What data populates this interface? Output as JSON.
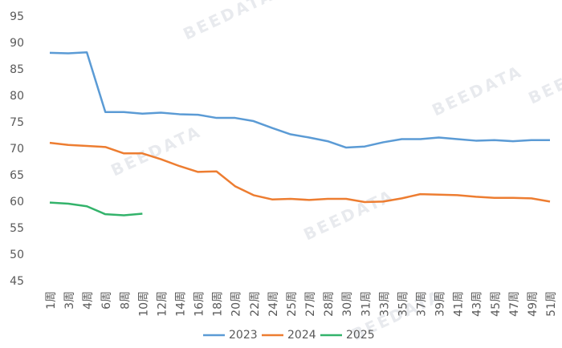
{
  "watermark": "BEEDATA",
  "chart_data": {
    "type": "line",
    "categories": [
      "1周",
      "3周",
      "4周",
      "6周",
      "8周",
      "10周",
      "12周",
      "14周",
      "16周",
      "18周",
      "20周",
      "22周",
      "24周",
      "25周",
      "27周",
      "28周",
      "30周",
      "31周",
      "33周",
      "35周",
      "37周",
      "39周",
      "41周",
      "43周",
      "45周",
      "47周",
      "49周",
      "51周"
    ],
    "series": [
      {
        "name": "2023",
        "color": "#5b9bd5",
        "values": [
          88.2,
          88.1,
          88.3,
          77,
          77,
          76.7,
          76.9,
          76.6,
          76.5,
          75.9,
          75.9,
          75.3,
          74,
          72.8,
          72.2,
          71.5,
          70.3,
          70.5,
          71.3,
          71.9,
          71.9,
          72.2,
          71.9,
          71.6,
          71.7,
          71.5,
          71.7,
          71.7
        ]
      },
      {
        "name": "2024",
        "color": "#ed7d31",
        "values": [
          71.2,
          70.8,
          70.6,
          70.4,
          69.2,
          69.2,
          68.1,
          66.8,
          65.7,
          65.8,
          63,
          61.3,
          60.5,
          60.6,
          60.4,
          60.6,
          60.6,
          60,
          60.1,
          60.7,
          61.5,
          61.4,
          61.3,
          61,
          60.8,
          60.8,
          60.7,
          60.1
        ]
      },
      {
        "name": "2025",
        "color": "#33b36b",
        "values": [
          59.9,
          59.7,
          59.2,
          57.7,
          57.5,
          57.8,
          null,
          null,
          null,
          null,
          null,
          null,
          null,
          null,
          null,
          null,
          null,
          null,
          null,
          null,
          null,
          null,
          null,
          null,
          null,
          null,
          null,
          null
        ]
      }
    ],
    "ylim": [
      45,
      95
    ],
    "yticks": [
      45,
      50,
      55,
      60,
      65,
      70,
      75,
      80,
      85,
      90,
      95
    ],
    "grid": false,
    "legend": "bottom"
  }
}
